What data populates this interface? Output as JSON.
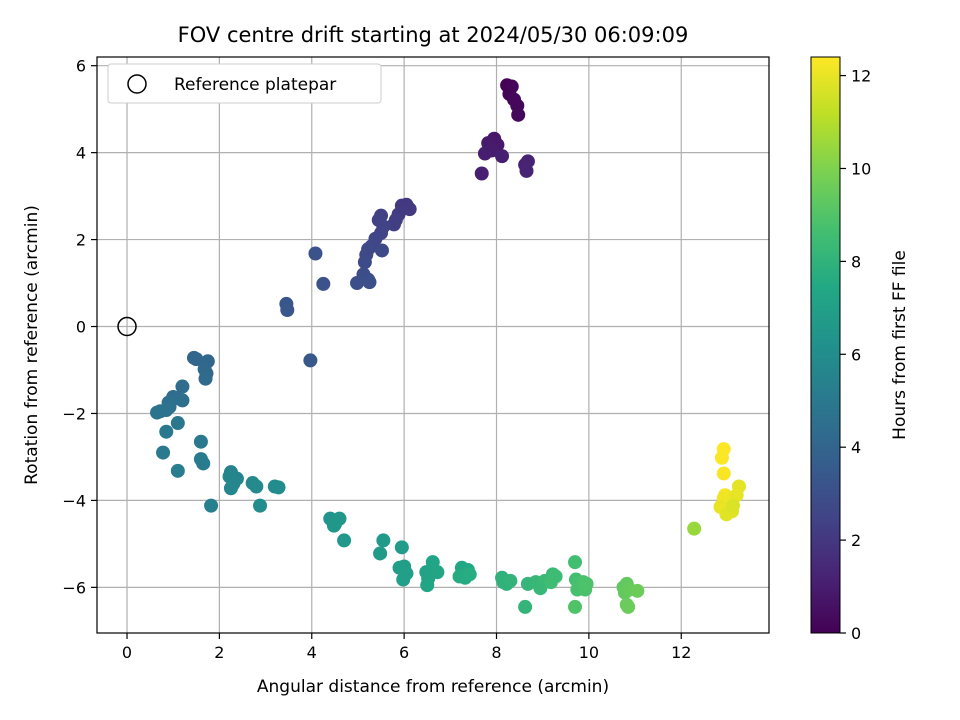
{
  "chart_data": {
    "type": "scatter",
    "title": "FOV centre drift starting at 2024/05/30 06:09:09",
    "xlabel": "Angular distance from reference (arcmin)",
    "ylabel": "Rotation from reference (arcmin)",
    "xlim": [
      -0.65,
      13.9
    ],
    "ylim": [
      -7.05,
      6.2
    ],
    "xticks": [
      0,
      2,
      4,
      6,
      8,
      10,
      12
    ],
    "yticks": [
      -6,
      -4,
      -2,
      0,
      2,
      4,
      6
    ],
    "xtick_labels": [
      "0",
      "2",
      "4",
      "6",
      "8",
      "10",
      "12"
    ],
    "ytick_labels": [
      "−6",
      "−4",
      "−2",
      "0",
      "2",
      "4",
      "6"
    ],
    "grid": true,
    "legend": {
      "position": "top-left",
      "entries": [
        "Reference platepar"
      ]
    },
    "reference_point": {
      "x": 0,
      "y": 0
    },
    "colorbar": {
      "label": "Hours from first FF file",
      "colormap": "viridis",
      "range": [
        0,
        12.4
      ],
      "ticks": [
        0,
        2,
        4,
        6,
        8,
        10,
        12
      ],
      "tick_labels": [
        "0",
        "2",
        "4",
        "6",
        "8",
        "10",
        "12"
      ]
    },
    "points": [
      [
        8.23,
        5.55,
        0.05
      ],
      [
        8.33,
        5.52,
        0.1
      ],
      [
        8.28,
        5.35,
        0.15
      ],
      [
        8.38,
        5.22,
        0.2
      ],
      [
        8.45,
        5.08,
        0.25
      ],
      [
        8.47,
        4.87,
        0.3
      ],
      [
        7.95,
        4.32,
        0.8
      ],
      [
        8.02,
        4.18,
        0.85
      ],
      [
        7.82,
        4.22,
        0.9
      ],
      [
        7.9,
        4.05,
        0.95
      ],
      [
        7.75,
        3.98,
        1.0
      ],
      [
        8.12,
        3.92,
        1.05
      ],
      [
        7.68,
        3.52,
        1.1
      ],
      [
        8.62,
        3.72,
        1.15
      ],
      [
        8.68,
        3.8,
        1.2
      ],
      [
        8.65,
        3.58,
        1.25
      ],
      [
        6.05,
        2.8,
        2.0
      ],
      [
        5.95,
        2.78,
        2.05
      ],
      [
        6.12,
        2.7,
        2.1
      ],
      [
        5.88,
        2.58,
        2.15
      ],
      [
        5.82,
        2.45,
        2.2
      ],
      [
        5.78,
        2.35,
        2.25
      ],
      [
        5.5,
        2.55,
        2.35
      ],
      [
        5.45,
        2.45,
        2.4
      ],
      [
        5.55,
        2.3,
        2.45
      ],
      [
        5.5,
        2.15,
        2.5
      ],
      [
        5.38,
        2.02,
        2.55
      ],
      [
        5.3,
        1.85,
        2.6
      ],
      [
        5.22,
        1.78,
        2.65
      ],
      [
        5.18,
        1.65,
        2.7
      ],
      [
        5.52,
        1.75,
        2.75
      ],
      [
        5.15,
        1.48,
        2.8
      ],
      [
        5.12,
        1.2,
        2.9
      ],
      [
        5.22,
        1.08,
        2.95
      ],
      [
        4.98,
        1.0,
        3.0
      ],
      [
        5.25,
        1.02,
        3.05
      ],
      [
        4.08,
        1.68,
        3.1
      ],
      [
        4.25,
        0.98,
        3.15
      ],
      [
        3.45,
        0.52,
        3.3
      ],
      [
        3.47,
        0.38,
        3.35
      ],
      [
        3.97,
        -0.78,
        3.4
      ],
      [
        1.45,
        -0.72,
        4.0
      ],
      [
        1.5,
        -0.75,
        4.05
      ],
      [
        1.75,
        -0.8,
        4.1
      ],
      [
        1.68,
        -0.98,
        4.15
      ],
      [
        1.72,
        -1.08,
        4.2
      ],
      [
        1.7,
        -1.2,
        4.25
      ],
      [
        1.2,
        -1.38,
        4.35
      ],
      [
        1.0,
        -1.62,
        4.4
      ],
      [
        1.08,
        -1.65,
        4.45
      ],
      [
        1.2,
        -1.7,
        4.5
      ],
      [
        0.9,
        -1.75,
        4.55
      ],
      [
        0.92,
        -1.85,
        4.6
      ],
      [
        0.85,
        -1.92,
        4.65
      ],
      [
        0.65,
        -1.98,
        4.7
      ],
      [
        0.72,
        -1.95,
        4.75
      ],
      [
        1.1,
        -2.22,
        4.9
      ],
      [
        0.85,
        -2.42,
        4.95
      ],
      [
        1.6,
        -2.65,
        5.0
      ],
      [
        0.78,
        -2.9,
        5.05
      ],
      [
        1.6,
        -3.05,
        5.1
      ],
      [
        1.65,
        -3.15,
        5.15
      ],
      [
        1.1,
        -3.32,
        5.2
      ],
      [
        1.82,
        -4.12,
        5.3
      ],
      [
        2.25,
        -3.35,
        5.5
      ],
      [
        2.22,
        -3.45,
        5.55
      ],
      [
        2.38,
        -3.5,
        5.6
      ],
      [
        2.3,
        -3.62,
        5.65
      ],
      [
        2.25,
        -3.72,
        5.7
      ],
      [
        2.72,
        -3.6,
        5.8
      ],
      [
        2.8,
        -3.68,
        5.85
      ],
      [
        3.2,
        -3.68,
        5.9
      ],
      [
        3.28,
        -3.7,
        5.95
      ],
      [
        2.88,
        -4.12,
        6.0
      ],
      [
        4.4,
        -4.42,
        6.4
      ],
      [
        4.5,
        -4.55,
        6.45
      ],
      [
        4.6,
        -4.42,
        6.5
      ],
      [
        4.48,
        -4.58,
        6.55
      ],
      [
        4.7,
        -4.92,
        6.6
      ],
      [
        5.55,
        -4.92,
        6.7
      ],
      [
        5.48,
        -5.22,
        6.75
      ],
      [
        5.95,
        -5.08,
        6.8
      ],
      [
        5.9,
        -5.55,
        6.85
      ],
      [
        6.0,
        -5.52,
        6.9
      ],
      [
        6.05,
        -5.68,
        6.95
      ],
      [
        5.98,
        -5.82,
        7.0
      ],
      [
        6.48,
        -5.65,
        7.1
      ],
      [
        6.52,
        -5.8,
        7.15
      ],
      [
        6.62,
        -5.42,
        7.2
      ],
      [
        6.72,
        -5.65,
        7.25
      ],
      [
        6.5,
        -5.95,
        7.3
      ],
      [
        7.25,
        -5.55,
        7.4
      ],
      [
        7.38,
        -5.6,
        7.45
      ],
      [
        7.28,
        -5.72,
        7.5
      ],
      [
        7.32,
        -5.78,
        7.55
      ],
      [
        7.2,
        -5.75,
        7.6
      ],
      [
        7.42,
        -5.7,
        7.65
      ],
      [
        8.12,
        -5.78,
        7.9
      ],
      [
        8.15,
        -5.88,
        7.95
      ],
      [
        8.22,
        -5.92,
        8.0
      ],
      [
        8.3,
        -5.85,
        8.05
      ],
      [
        8.62,
        -6.45,
        8.1
      ],
      [
        8.68,
        -5.92,
        8.15
      ],
      [
        8.85,
        -5.88,
        8.2
      ],
      [
        8.95,
        -6.02,
        8.25
      ],
      [
        9.05,
        -5.85,
        8.3
      ],
      [
        9.22,
        -5.7,
        8.4
      ],
      [
        9.28,
        -5.75,
        8.45
      ],
      [
        9.18,
        -5.88,
        8.5
      ],
      [
        9.7,
        -5.42,
        8.6
      ],
      [
        9.72,
        -5.82,
        8.65
      ],
      [
        9.78,
        -5.9,
        8.7
      ],
      [
        9.75,
        -6.05,
        8.75
      ],
      [
        9.88,
        -5.88,
        8.8
      ],
      [
        9.92,
        -6.05,
        8.85
      ],
      [
        9.95,
        -5.92,
        8.9
      ],
      [
        9.7,
        -6.45,
        8.95
      ],
      [
        10.75,
        -6.0,
        9.3
      ],
      [
        10.82,
        -5.92,
        9.35
      ],
      [
        10.78,
        -6.12,
        9.4
      ],
      [
        10.88,
        -6.05,
        9.45
      ],
      [
        10.82,
        -6.4,
        9.5
      ],
      [
        10.85,
        -6.45,
        9.55
      ],
      [
        11.05,
        -6.08,
        9.6
      ],
      [
        12.28,
        -4.65,
        10.5
      ],
      [
        12.92,
        -2.82,
        12.4
      ],
      [
        12.88,
        -3.02,
        12.35
      ],
      [
        12.92,
        -3.38,
        12.3
      ],
      [
        12.95,
        -3.88,
        12.2
      ],
      [
        12.92,
        -3.95,
        12.15
      ],
      [
        13.05,
        -3.95,
        12.1
      ],
      [
        13.25,
        -3.68,
        11.9
      ],
      [
        13.2,
        -3.88,
        11.95
      ],
      [
        12.85,
        -4.15,
        12.0
      ],
      [
        12.95,
        -4.22,
        12.05
      ],
      [
        13.1,
        -4.25,
        11.8
      ],
      [
        12.98,
        -4.32,
        11.85
      ],
      [
        13.12,
        -4.12,
        11.75
      ]
    ]
  }
}
